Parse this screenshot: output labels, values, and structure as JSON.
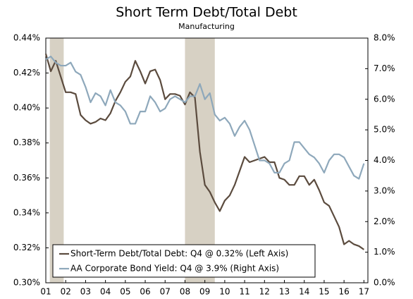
{
  "chart_data": {
    "type": "line",
    "title": "Short Term Debt/Total Debt",
    "subtitle": "Manufacturing",
    "x": [
      1.0,
      1.25,
      1.5,
      1.75,
      2.0,
      2.25,
      2.5,
      2.75,
      3.0,
      3.25,
      3.5,
      3.75,
      4.0,
      4.25,
      4.5,
      4.75,
      5.0,
      5.25,
      5.5,
      5.75,
      6.0,
      6.25,
      6.5,
      6.75,
      7.0,
      7.25,
      7.5,
      7.75,
      8.0,
      8.25,
      8.5,
      8.75,
      9.0,
      9.25,
      9.5,
      9.75,
      10.0,
      10.25,
      10.5,
      10.75,
      11.0,
      11.25,
      11.5,
      11.75,
      12.0,
      12.25,
      12.5,
      12.75,
      13.0,
      13.25,
      13.5,
      13.75,
      14.0,
      14.25,
      14.5,
      14.75,
      15.0,
      15.25,
      15.5,
      15.75,
      16.0,
      16.25,
      16.5,
      16.75,
      17.0
    ],
    "series": [
      {
        "name": "Short-Term Debt/Total Debt: Q4 @ 0.32% (Left Axis)",
        "color": "#5b4b3e",
        "values": [
          0.431,
          0.421,
          0.427,
          0.418,
          0.409,
          0.409,
          0.408,
          0.396,
          0.393,
          0.391,
          0.392,
          0.394,
          0.393,
          0.397,
          0.404,
          0.409,
          0.415,
          0.418,
          0.427,
          0.421,
          0.414,
          0.421,
          0.422,
          0.416,
          0.405,
          0.408,
          0.408,
          0.407,
          0.402,
          0.409,
          0.406,
          0.375,
          0.356,
          0.352,
          0.346,
          0.341,
          0.347,
          0.35,
          0.356,
          0.364,
          0.372,
          0.369,
          0.37,
          0.371,
          0.372,
          0.369,
          0.369,
          0.36,
          0.359,
          0.356,
          0.356,
          0.361,
          0.361,
          0.356,
          0.359,
          0.353,
          0.346,
          0.344,
          0.338,
          0.332,
          0.322,
          0.324,
          0.322,
          0.321,
          0.319
        ]
      },
      {
        "name": "AA Corporate Bond Yield: Q4 @ 3.9% (Right Axis)",
        "color": "#8ea8bb",
        "axis": "y2",
        "values": [
          7.3,
          7.4,
          7.2,
          7.1,
          7.1,
          7.2,
          6.9,
          6.8,
          6.4,
          5.9,
          6.2,
          6.1,
          5.8,
          6.3,
          5.9,
          5.8,
          5.6,
          5.2,
          5.2,
          5.6,
          5.6,
          6.1,
          5.9,
          5.6,
          5.7,
          6.0,
          6.1,
          6.0,
          5.9,
          6.1,
          6.1,
          6.5,
          6.0,
          6.2,
          5.5,
          5.3,
          5.4,
          5.2,
          4.8,
          5.1,
          5.3,
          5.0,
          4.5,
          4.0,
          4.0,
          3.9,
          3.6,
          3.6,
          3.9,
          4.0,
          4.6,
          4.6,
          4.4,
          4.2,
          4.1,
          3.9,
          3.6,
          4.0,
          4.2,
          4.2,
          4.1,
          3.8,
          3.5,
          3.4,
          3.9
        ]
      }
    ],
    "recessions": [
      [
        1.2,
        1.9
      ],
      [
        8.0,
        9.5
      ]
    ],
    "recession_color": "#d7d1c4",
    "xlim": [
      1,
      17.2
    ],
    "xticks": [
      {
        "value": 1,
        "label": "01"
      },
      {
        "value": 2,
        "label": "02"
      },
      {
        "value": 3,
        "label": "03"
      },
      {
        "value": 4,
        "label": "04"
      },
      {
        "value": 5,
        "label": "05"
      },
      {
        "value": 6,
        "label": "06"
      },
      {
        "value": 7,
        "label": "07"
      },
      {
        "value": 8,
        "label": "08"
      },
      {
        "value": 9,
        "label": "09"
      },
      {
        "value": 10,
        "label": "10"
      },
      {
        "value": 11,
        "label": "11"
      },
      {
        "value": 12,
        "label": "12"
      },
      {
        "value": 13,
        "label": "13"
      },
      {
        "value": 14,
        "label": "14"
      },
      {
        "value": 15,
        "label": "15"
      },
      {
        "value": 16,
        "label": "16"
      },
      {
        "value": 17,
        "label": "17"
      }
    ],
    "ylim": [
      0.3,
      0.44
    ],
    "yticks": [
      {
        "value": 0.3,
        "label": "0.30%"
      },
      {
        "value": 0.32,
        "label": "0.32%"
      },
      {
        "value": 0.34,
        "label": "0.34%"
      },
      {
        "value": 0.36,
        "label": "0.36%"
      },
      {
        "value": 0.38,
        "label": "0.38%"
      },
      {
        "value": 0.4,
        "label": "0.40%"
      },
      {
        "value": 0.42,
        "label": "0.42%"
      },
      {
        "value": 0.44,
        "label": "0.44%"
      }
    ],
    "y2lim": [
      0,
      8
    ],
    "y2ticks": [
      {
        "value": 0,
        "label": "0.0%"
      },
      {
        "value": 1,
        "label": "1.0%"
      },
      {
        "value": 2,
        "label": "2.0%"
      },
      {
        "value": 3,
        "label": "3.0%"
      },
      {
        "value": 4,
        "label": "4.0%"
      },
      {
        "value": 5,
        "label": "5.0%"
      },
      {
        "value": 6,
        "label": "6.0%"
      },
      {
        "value": 7,
        "label": "7.0%"
      },
      {
        "value": 8,
        "label": "8.0%"
      }
    ],
    "legend": "lower left"
  }
}
